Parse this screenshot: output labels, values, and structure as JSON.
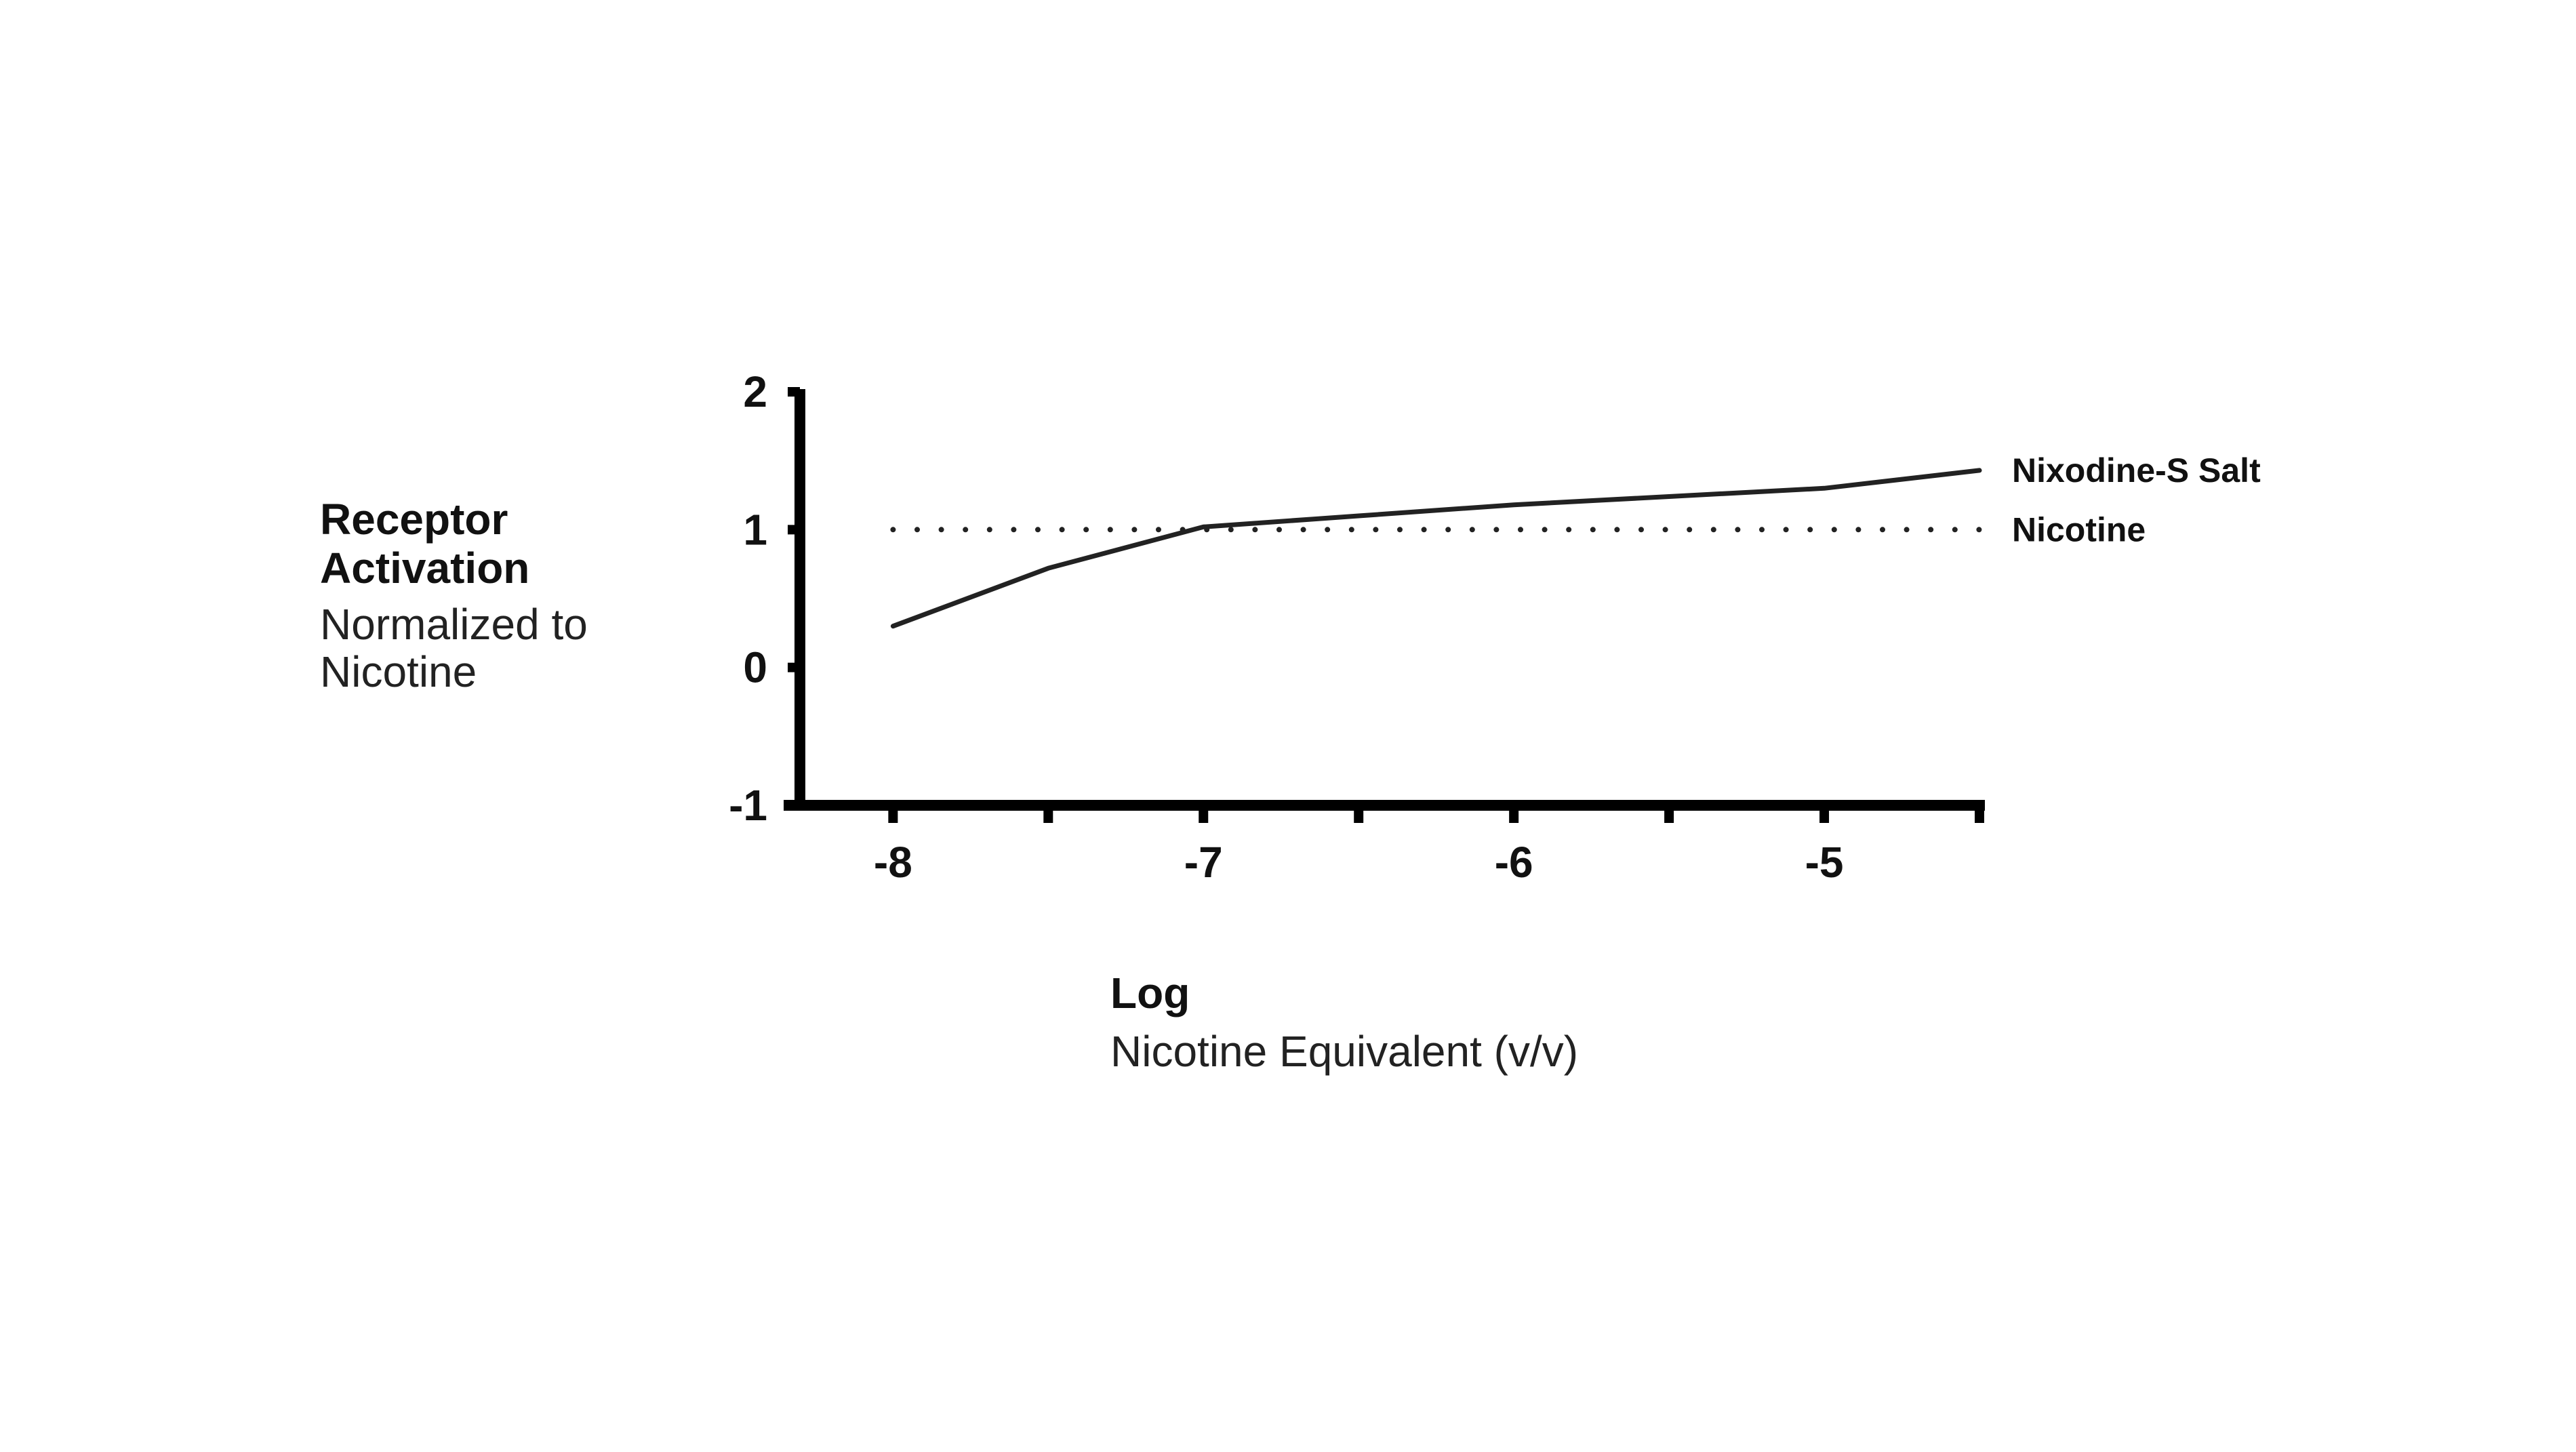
{
  "chart_data": {
    "type": "line",
    "title": "",
    "ylabel": {
      "main": "Receptor Activation",
      "sub": "Normalized to Nicotine"
    },
    "xlabel": {
      "main": "Log",
      "sub": "Nicotine Equivalent (v/v)"
    },
    "xlim": [
      -8.3,
      -4.5
    ],
    "ylim": [
      -1,
      2
    ],
    "x_ticks": [
      -8,
      -7.5,
      -7,
      -6.5,
      -6,
      -5.5,
      -5,
      -4.5
    ],
    "x_tick_labels": [
      {
        "value": -8,
        "label": "-8"
      },
      {
        "value": -7,
        "label": "-7"
      },
      {
        "value": -6,
        "label": "-6"
      },
      {
        "value": -5,
        "label": "-5"
      }
    ],
    "y_ticks": [
      {
        "value": 2,
        "label": "2"
      },
      {
        "value": 1,
        "label": "1"
      },
      {
        "value": 0,
        "label": "0"
      },
      {
        "value": -1,
        "label": "-1"
      }
    ],
    "grid": false,
    "series": [
      {
        "name": "Nixodine-S Salt",
        "style": "solid",
        "color": "#222222",
        "x": [
          -8,
          -7.5,
          -7,
          -6.5,
          -6,
          -5.5,
          -5,
          -4.5
        ],
        "y": [
          0.3,
          0.72,
          1.02,
          1.1,
          1.18,
          1.24,
          1.3,
          1.43
        ]
      },
      {
        "name": "Nicotine",
        "style": "dotted",
        "color": "#222222",
        "x": [
          -8,
          -4.5
        ],
        "y": [
          1,
          1
        ]
      }
    ]
  }
}
